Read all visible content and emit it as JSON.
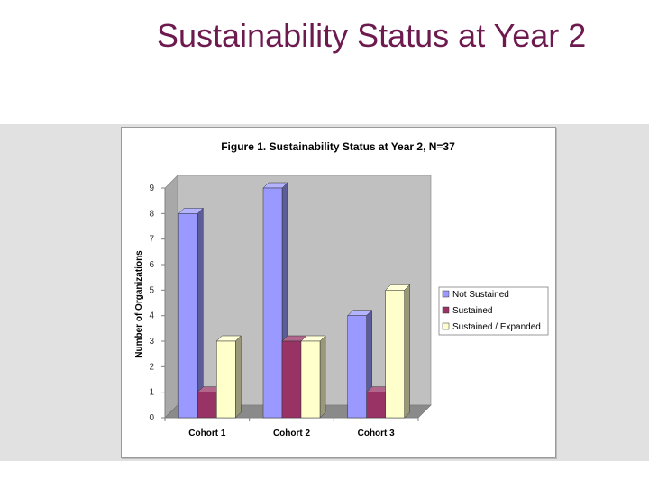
{
  "slide": {
    "title": "Sustainability Status at Year 2"
  },
  "colors": {
    "title": "#6d1a4f",
    "background_band": "#e1e1e1",
    "plot_wall": "#c0c0c0",
    "plot_floor": "#8a8a8a"
  },
  "chart_data": {
    "type": "bar",
    "title": "Figure 1. Sustainability Status at Year 2, N=37",
    "xlabel": "",
    "ylabel": "Number of Organizations",
    "categories": [
      "Cohort 1",
      "Cohort 2",
      "Cohort 3"
    ],
    "series": [
      {
        "name": "Not Sustained",
        "values": [
          8,
          9,
          4
        ],
        "color": "#9999ff"
      },
      {
        "name": "Sustained",
        "values": [
          1,
          3,
          1
        ],
        "color": "#993366"
      },
      {
        "name": "Sustained / Expanded",
        "values": [
          3,
          3,
          5
        ],
        "color": "#ffffcc"
      }
    ],
    "yticks": [
      0,
      1,
      2,
      3,
      4,
      5,
      6,
      7,
      8,
      9
    ],
    "ylim": [
      0,
      9
    ],
    "grid": false,
    "style": "3d-column",
    "legend_position": "right"
  }
}
